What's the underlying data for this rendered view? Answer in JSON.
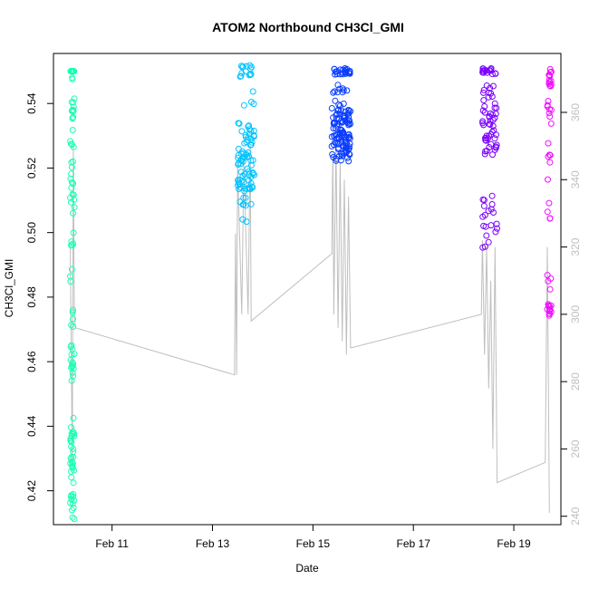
{
  "chart_data": {
    "type": "scatter",
    "title": "ATOM2 Northbound CH3Cl_GMI",
    "xlabel": "Date",
    "ylabel": "CH3Cl_GMI",
    "xlim": [
      "2016-02-09T20:00",
      "2016-02-19T22:30"
    ],
    "ylim": [
      0.4095,
      0.5555
    ],
    "y2lim": [
      237.5,
      377.5
    ],
    "x_ticks": [
      {
        "date": "2016-02-11",
        "label": "Feb 11"
      },
      {
        "date": "2016-02-13",
        "label": "Feb 13"
      },
      {
        "date": "2016-02-15",
        "label": "Feb 15"
      },
      {
        "date": "2016-02-17",
        "label": "Feb 17"
      },
      {
        "date": "2016-02-19",
        "label": "Feb 19"
      }
    ],
    "y_ticks": [
      0.42,
      0.44,
      0.46,
      0.48,
      0.5,
      0.52,
      0.54
    ],
    "y2_ticks": [
      240,
      260,
      280,
      300,
      320,
      340,
      360
    ],
    "grid": false,
    "legend": "none",
    "colors": {
      "flight1": "#19ffb2",
      "flight2": "#00c3ff",
      "flight3": "#0a3cff",
      "flight4": "#7a00ff",
      "flight5": "#f00fff",
      "secondary_line": "#bfbfbf",
      "axis": "#000000"
    },
    "series": [
      {
        "x_range": [
          "2016-02-10T04:00",
          "2016-02-10T06:00"
        ],
        "color": "#19ffb2",
        "points": [
          {
            "y": 0.55,
            "n": 18
          },
          {
            "y": 0.542,
            "n": 10,
            "spread": 0.008
          },
          {
            "y": 0.527,
            "n": 14,
            "spread": 0.012
          },
          {
            "y": 0.508,
            "n": 10,
            "spread": 0.01
          },
          {
            "y": 0.49,
            "n": 8,
            "spread": 0.01
          },
          {
            "y": 0.471,
            "n": 6,
            "spread": 0.006
          },
          {
            "y": 0.46,
            "n": 14,
            "spread": 0.006
          },
          {
            "y": 0.44,
            "n": 6,
            "spread": 0.006
          },
          {
            "y": 0.43,
            "n": 22,
            "spread": 0.008
          },
          {
            "y": 0.415,
            "n": 12,
            "spread": 0.004
          }
        ]
      },
      {
        "x_range": [
          "2016-02-13T12:00",
          "2016-02-13T20:00"
        ],
        "color": "#00c3ff",
        "points": [
          {
            "y": 0.55,
            "n": 14,
            "spread": 0.002
          },
          {
            "y": 0.528,
            "n": 30,
            "spread": 0.006
          },
          {
            "y": 0.519,
            "n": 40,
            "spread": 0.006
          },
          {
            "y": 0.509,
            "n": 12,
            "spread": 0.006
          },
          {
            "y": 0.54,
            "n": 4,
            "spread": 0.004
          }
        ]
      },
      {
        "x_range": [
          "2016-02-15T09:00",
          "2016-02-15T18:00"
        ],
        "color": "#0a3cff",
        "points": [
          {
            "y": 0.55,
            "n": 24,
            "spread": 0.001
          },
          {
            "y": 0.54,
            "n": 25,
            "spread": 0.006
          },
          {
            "y": 0.532,
            "n": 55,
            "spread": 0.006
          },
          {
            "y": 0.527,
            "n": 40,
            "spread": 0.005
          }
        ]
      },
      {
        "x_range": [
          "2016-02-18T09:00",
          "2016-02-18T16:00"
        ],
        "color": "#7a00ff",
        "points": [
          {
            "y": 0.55,
            "n": 16,
            "spread": 0.001
          },
          {
            "y": 0.54,
            "n": 30,
            "spread": 0.007
          },
          {
            "y": 0.528,
            "n": 22,
            "spread": 0.004
          },
          {
            "y": 0.508,
            "n": 10,
            "spread": 0.004
          },
          {
            "y": 0.499,
            "n": 10,
            "spread": 0.004
          }
        ]
      },
      {
        "x_range": [
          "2016-02-19T16:00",
          "2016-02-19T18:00"
        ],
        "color": "#f00fff",
        "points": [
          {
            "y": 0.548,
            "n": 14,
            "spread": 0.003
          },
          {
            "y": 0.537,
            "n": 8,
            "spread": 0.004
          },
          {
            "y": 0.522,
            "n": 6,
            "spread": 0.006
          },
          {
            "y": 0.505,
            "n": 4,
            "spread": 0.005
          },
          {
            "y": 0.486,
            "n": 4,
            "spread": 0.004
          },
          {
            "y": 0.476,
            "n": 14,
            "spread": 0.002
          }
        ]
      }
    ],
    "secondary_line": {
      "axis": "y2",
      "points": [
        [
          "2016-02-10T04:00",
          320
        ],
        [
          "2016-02-10T05:00",
          255
        ],
        [
          "2016-02-10T05:30",
          350
        ],
        [
          "2016-02-10T06:00",
          300
        ],
        [
          "2016-02-10T06:30",
          296
        ],
        [
          "2016-02-13T10:30",
          282
        ],
        [
          "2016-02-13T11:00",
          324
        ],
        [
          "2016-02-13T11:30",
          282
        ],
        [
          "2016-02-13T12:00",
          345
        ],
        [
          "2016-02-13T14:00",
          300
        ],
        [
          "2016-02-13T15:00",
          345
        ],
        [
          "2016-02-13T17:00",
          300
        ],
        [
          "2016-02-13T18:00",
          350
        ],
        [
          "2016-02-13T18:30",
          298
        ],
        [
          "2016-02-15T09:00",
          318
        ],
        [
          "2016-02-15T09:30",
          348
        ],
        [
          "2016-02-15T10:00",
          300
        ],
        [
          "2016-02-15T11:00",
          350
        ],
        [
          "2016-02-15T12:00",
          296
        ],
        [
          "2016-02-15T13:00",
          345
        ],
        [
          "2016-02-15T14:00",
          292
        ],
        [
          "2016-02-15T15:00",
          340
        ],
        [
          "2016-02-15T16:00",
          288
        ],
        [
          "2016-02-15T17:00",
          335
        ],
        [
          "2016-02-15T18:00",
          290
        ],
        [
          "2016-02-18T08:30",
          300
        ],
        [
          "2016-02-18T09:00",
          322
        ],
        [
          "2016-02-18T10:00",
          288
        ],
        [
          "2016-02-18T11:00",
          320
        ],
        [
          "2016-02-18T12:00",
          278
        ],
        [
          "2016-02-18T13:00",
          310
        ],
        [
          "2016-02-18T14:00",
          260
        ],
        [
          "2016-02-18T15:00",
          320
        ],
        [
          "2016-02-18T16:00",
          250
        ],
        [
          "2016-02-19T15:00",
          256
        ],
        [
          "2016-02-19T16:00",
          320
        ],
        [
          "2016-02-19T17:00",
          241
        ]
      ]
    }
  }
}
